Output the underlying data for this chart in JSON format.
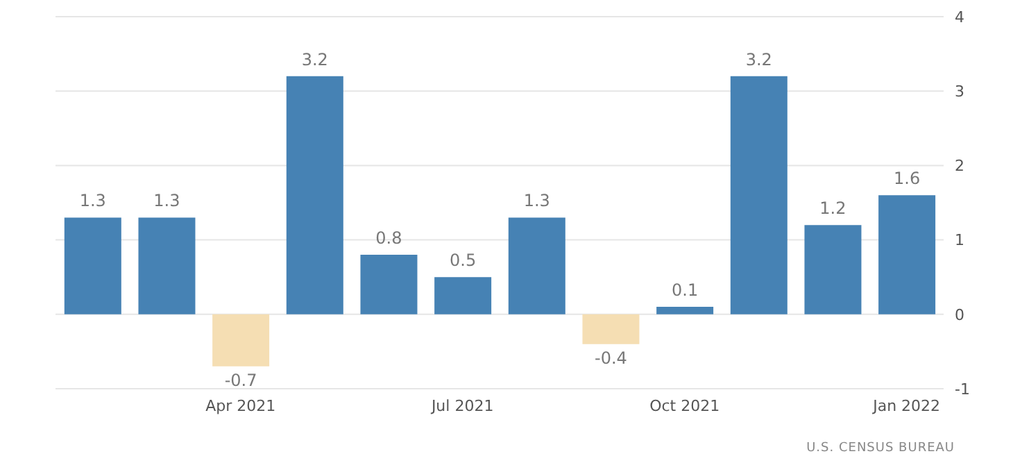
{
  "chart_data": {
    "type": "bar",
    "categories": [
      null,
      null,
      "Apr 2021",
      null,
      null,
      "Jul 2021",
      null,
      null,
      "Oct 2021",
      null,
      null,
      "Jan 2022"
    ],
    "values": [
      1.3,
      1.3,
      -0.7,
      3.2,
      0.8,
      0.5,
      1.3,
      -0.4,
      0.1,
      3.2,
      1.2,
      1.6
    ],
    "colors": [
      "#4682b4",
      "#4682b4",
      "#f5deb3",
      "#4682b4",
      "#4682b4",
      "#4682b4",
      "#4682b4",
      "#f5deb3",
      "#4682b4",
      "#4682b4",
      "#4682b4",
      "#4682b4"
    ],
    "ylim": [
      -1,
      4
    ],
    "yticks": [
      -1,
      0,
      1,
      2,
      3,
      4
    ],
    "grid": "y",
    "data_labels": true,
    "annotations": [
      "U.S. CENSUS BUREAU"
    ]
  }
}
